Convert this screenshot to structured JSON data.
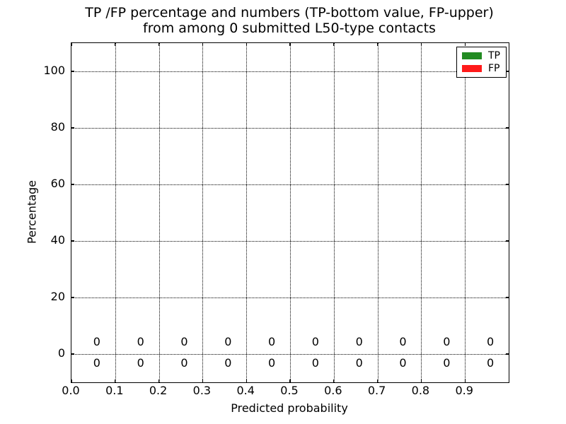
{
  "chart_data": {
    "type": "bar",
    "title": "TP /FP percentage and numbers (TP-bottom value, FP-upper)\nfrom among 0 submitted L50-type contacts",
    "xlabel": "Predicted probability",
    "ylabel": "Percentage",
    "xlim": [
      0.0,
      1.0
    ],
    "ylim": [
      -10,
      110
    ],
    "grid": "dotted",
    "legend_position": "upper right",
    "xtick_values": [
      0.0,
      0.1,
      0.2,
      0.3,
      0.4,
      0.5,
      0.6,
      0.7,
      0.8,
      0.9
    ],
    "xtick_labels": [
      "0.0",
      "0.1",
      "0.2",
      "0.3",
      "0.4",
      "0.5",
      "0.6",
      "0.7",
      "0.8",
      "0.9"
    ],
    "ytick_values": [
      0,
      20,
      40,
      60,
      80,
      100
    ],
    "ytick_labels": [
      "0",
      "20",
      "40",
      "60",
      "80",
      "100"
    ],
    "bin_centers": [
      0.05,
      0.15,
      0.25,
      0.35,
      0.45,
      0.55,
      0.65,
      0.75,
      0.85,
      0.95
    ],
    "series": [
      {
        "name": "TP",
        "color": "#228B22",
        "label_row": "bottom",
        "values": [
          0,
          0,
          0,
          0,
          0,
          0,
          0,
          0,
          0,
          0
        ],
        "value_labels": [
          "0",
          "0",
          "0",
          "0",
          "0",
          "0",
          "0",
          "0",
          "0",
          "0"
        ]
      },
      {
        "name": "FP",
        "color": "#FF1A1A",
        "label_row": "upper",
        "values": [
          0,
          0,
          0,
          0,
          0,
          0,
          0,
          0,
          0,
          0
        ],
        "value_labels": [
          "0",
          "0",
          "0",
          "0",
          "0",
          "0",
          "0",
          "0",
          "0",
          "0"
        ]
      }
    ]
  }
}
